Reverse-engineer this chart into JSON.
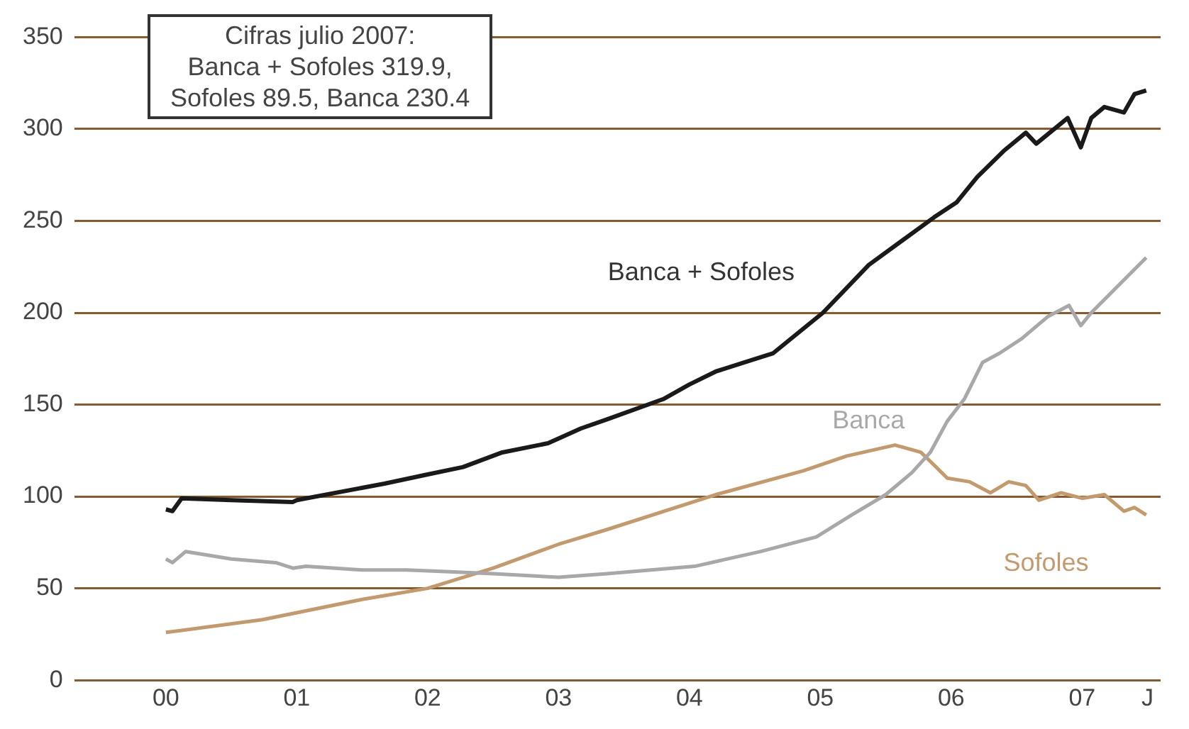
{
  "chart_data": {
    "type": "line",
    "annotations": [
      "Cifras julio 2007:\nBanca + Sofoles 319.9,\nSofoles 89.5, Banca 230.4"
    ],
    "series": [
      {
        "name": "Banca + Sofoles",
        "color": "#1a1a1a",
        "x": [
          2000,
          2000.05,
          2000.12,
          2000.5,
          2000.97,
          2001,
          2001.67,
          2002,
          2002.27,
          2002.57,
          2002.92,
          2003.17,
          2003.37,
          2003.8,
          2004,
          2004.2,
          2004.64,
          2005.02,
          2005.37,
          2005.87,
          2006.04,
          2006.2,
          2006.4,
          2006.57,
          2006.65,
          2006.89,
          2006.99,
          2007.07,
          2007.17,
          2007.32,
          2007.4,
          2007.49
        ],
        "values": [
          93,
          92,
          99,
          98,
          97,
          98,
          107,
          112,
          116,
          124,
          129,
          137,
          142,
          153,
          161,
          168,
          178,
          200,
          226,
          252,
          260,
          274,
          288,
          298,
          292,
          306,
          290,
          306,
          312,
          309,
          319,
          321
        ]
      },
      {
        "name": "Banca",
        "color": "#a8a8a8",
        "x": [
          2000,
          2000.05,
          2000.15,
          2000.5,
          2000.84,
          2000.97,
          2001.07,
          2001.5,
          2001.84,
          2002.17,
          2002.5,
          2003,
          2003.37,
          2004.04,
          2004.54,
          2004.97,
          2005.24,
          2005.5,
          2005.7,
          2005.84,
          2005.97,
          2006.1,
          2006.24,
          2006.37,
          2006.54,
          2006.74,
          2006.9,
          2006.99,
          2007.07,
          2007.49
        ],
        "values": [
          66,
          64,
          70,
          66,
          64,
          61,
          62,
          60,
          60,
          59,
          58,
          56,
          58,
          62,
          70,
          78,
          90,
          101,
          113,
          124,
          141,
          153,
          173,
          178,
          186,
          198,
          204,
          193,
          200,
          230
        ]
      },
      {
        "name": "Sofoles",
        "color": "#c49a6c",
        "x": [
          2000,
          2000.74,
          2001.5,
          2002,
          2002.5,
          2003,
          2003.37,
          2004.2,
          2004.87,
          2005.2,
          2005.57,
          2005.77,
          2005.87,
          2005.97,
          2006.14,
          2006.3,
          2006.44,
          2006.57,
          2006.67,
          2006.84,
          2007,
          2007.17,
          2007.32,
          2007.4,
          2007.49
        ],
        "values": [
          26,
          33,
          44,
          50,
          61,
          74,
          82,
          101,
          114,
          122,
          128,
          124,
          117,
          110,
          108,
          102,
          108,
          106,
          98,
          102,
          99,
          101,
          92,
          94,
          90
        ]
      }
    ],
    "xlim": [
      1999.3,
      2007.6
    ],
    "xticks": [
      {
        "value": 2000,
        "label": "00"
      },
      {
        "value": 2001,
        "label": "01"
      },
      {
        "value": 2002,
        "label": "02"
      },
      {
        "value": 2003,
        "label": "03"
      },
      {
        "value": 2004,
        "label": "04"
      },
      {
        "value": 2005,
        "label": "05"
      },
      {
        "value": 2006,
        "label": "06"
      },
      {
        "value": 2007,
        "label": "07"
      },
      {
        "value": 2007.5,
        "label": "J"
      }
    ],
    "ylim": [
      0,
      350
    ],
    "yticks": [
      0,
      50,
      100,
      150,
      200,
      250,
      300,
      350
    ],
    "grid": "y",
    "legend": false,
    "marker": "none",
    "line_style": "solid"
  }
}
